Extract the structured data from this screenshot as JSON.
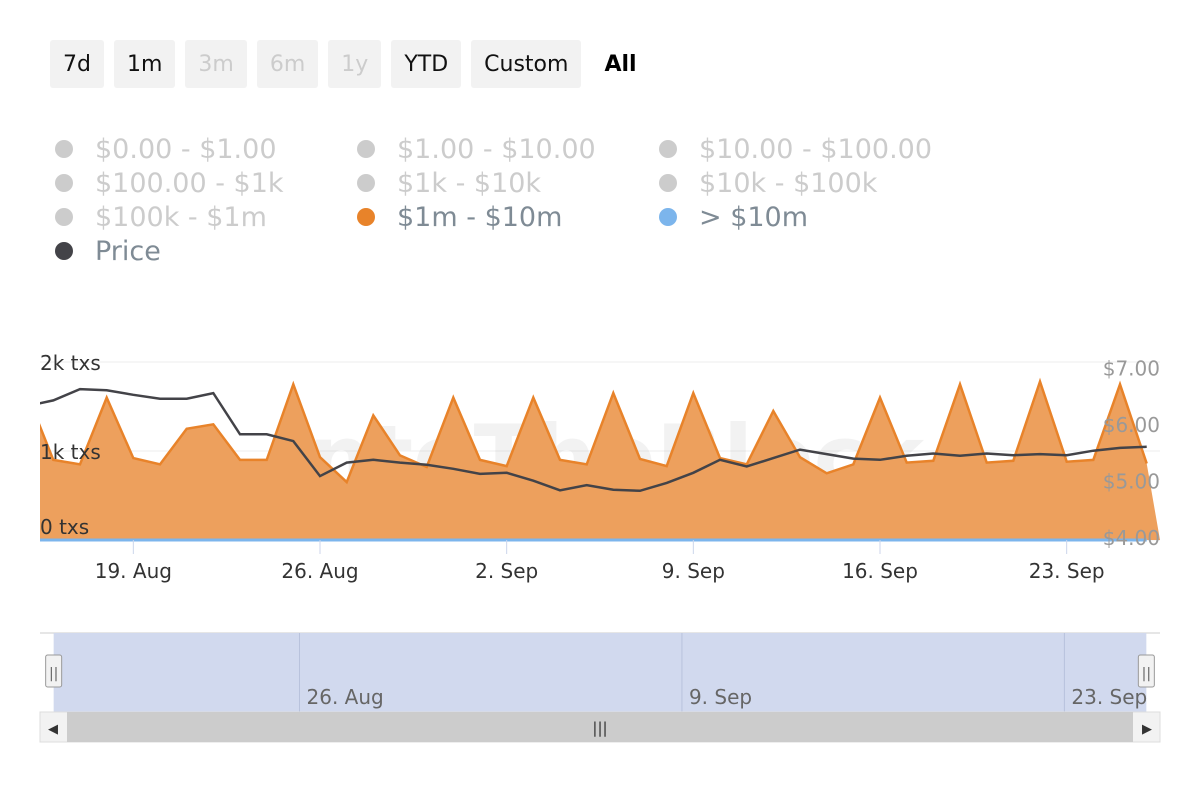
{
  "range_selector": {
    "buttons": [
      {
        "label": "7d",
        "state": "enabled"
      },
      {
        "label": "1m",
        "state": "enabled"
      },
      {
        "label": "3m",
        "state": "disabled"
      },
      {
        "label": "6m",
        "state": "disabled"
      },
      {
        "label": "1y",
        "state": "disabled"
      },
      {
        "label": "YTD",
        "state": "enabled"
      },
      {
        "label": "Custom",
        "state": "enabled"
      },
      {
        "label": "All",
        "state": "selected"
      }
    ]
  },
  "legend": {
    "items": [
      {
        "label": "$0.00 - $1.00",
        "color": "#cccccc",
        "active": false
      },
      {
        "label": "$1.00 - $10.00",
        "color": "#cccccc",
        "active": false
      },
      {
        "label": "$10.00 - $100.00",
        "color": "#cccccc",
        "active": false
      },
      {
        "label": "$100.00 - $1k",
        "color": "#cccccc",
        "active": false
      },
      {
        "label": "$1k - $10k",
        "color": "#cccccc",
        "active": false
      },
      {
        "label": "$10k - $100k",
        "color": "#cccccc",
        "active": false
      },
      {
        "label": "$100k - $1m",
        "color": "#cccccc",
        "active": false
      },
      {
        "label": "$1m - $10m",
        "color": "#e8832a",
        "active": true
      },
      {
        "label": "> $10m",
        "color": "#7cb5ec",
        "active": true
      },
      {
        "label": "Price",
        "color": "#434348",
        "active": true
      }
    ]
  },
  "chart_data": {
    "type": "area",
    "x_dates": [
      "2024-08-15",
      "2024-08-16",
      "2024-08-17",
      "2024-08-18",
      "2024-08-19",
      "2024-08-20",
      "2024-08-21",
      "2024-08-22",
      "2024-08-23",
      "2024-08-24",
      "2024-08-25",
      "2024-08-26",
      "2024-08-27",
      "2024-08-28",
      "2024-08-29",
      "2024-08-30",
      "2024-08-31",
      "2024-09-01",
      "2024-09-02",
      "2024-09-03",
      "2024-09-04",
      "2024-09-05",
      "2024-09-06",
      "2024-09-07",
      "2024-09-08",
      "2024-09-09",
      "2024-09-10",
      "2024-09-11",
      "2024-09-12",
      "2024-09-13",
      "2024-09-14",
      "2024-09-15",
      "2024-09-16",
      "2024-09-17",
      "2024-09-18",
      "2024-09-19",
      "2024-09-20",
      "2024-09-21",
      "2024-09-22",
      "2024-09-23",
      "2024-09-24",
      "2024-09-25",
      "2024-09-26"
    ],
    "x_start": "2024-08-15T12:00",
    "x_end": "2024-09-26T12:00",
    "series": [
      {
        "name": "$1m - $10m",
        "axis": "left",
        "color": "#e8832a",
        "fill": "#eda05d",
        "values": [
          1650,
          900,
          850,
          1600,
          920,
          850,
          1250,
          1300,
          900,
          900,
          1750,
          930,
          650,
          1400,
          950,
          820,
          1600,
          900,
          830,
          1600,
          900,
          850,
          1650,
          910,
          830,
          1650,
          920,
          850,
          1450,
          930,
          750,
          850,
          1600,
          870,
          890,
          1750,
          870,
          890,
          1780,
          880,
          900,
          1750,
          860
        ]
      },
      {
        "name": "> $10m",
        "axis": "left",
        "color": "#7cb5ec",
        "values": [
          0,
          0,
          0,
          0,
          0,
          0,
          0,
          0,
          0,
          0,
          0,
          0,
          0,
          0,
          0,
          0,
          0,
          0,
          0,
          0,
          0,
          0,
          0,
          0,
          0,
          0,
          0,
          0,
          0,
          0,
          0,
          0,
          0,
          0,
          0,
          0,
          0,
          0,
          0,
          0,
          0,
          0,
          0
        ]
      },
      {
        "name": "Price",
        "axis": "right",
        "color": "#434348",
        "values": [
          6.32,
          6.42,
          6.62,
          6.6,
          6.52,
          6.45,
          6.45,
          6.55,
          5.82,
          5.82,
          5.7,
          5.08,
          5.32,
          5.37,
          5.32,
          5.28,
          5.21,
          5.12,
          5.14,
          5.0,
          4.83,
          4.92,
          4.84,
          4.82,
          4.96,
          5.14,
          5.37,
          5.25,
          5.4,
          5.55,
          5.47,
          5.39,
          5.37,
          5.44,
          5.48,
          5.44,
          5.48,
          5.45,
          5.47,
          5.45,
          5.53,
          5.58,
          5.6
        ]
      }
    ],
    "y_left": {
      "ticks": [
        "0 txs",
        "1k txs",
        "2k txs"
      ],
      "ylim": [
        0,
        2000
      ]
    },
    "y_right": {
      "ticks": [
        "$4.00",
        "$5.00",
        "$6.00",
        "$7.00"
      ],
      "ylim": [
        3.95,
        7.1
      ]
    },
    "x_tick_labels": [
      {
        "date": "2024-08-19",
        "label": "19. Aug"
      },
      {
        "date": "2024-08-26",
        "label": "26. Aug"
      },
      {
        "date": "2024-09-02",
        "label": "2. Sep"
      },
      {
        "date": "2024-09-09",
        "label": "9. Sep"
      },
      {
        "date": "2024-09-16",
        "label": "16. Sep"
      },
      {
        "date": "2024-09-23",
        "label": "23. Sep"
      }
    ],
    "watermark": "IntoTheBlock"
  },
  "navigator": {
    "x_start": "2024-08-16T12:00",
    "x_end": "2024-09-26T12:00",
    "selection_start": "2024-08-17T00:00",
    "selection_end": "2024-09-26T00:00",
    "labels": [
      {
        "date": "2024-08-26",
        "label": "26. Aug"
      },
      {
        "date": "2024-09-09",
        "label": "9. Sep"
      },
      {
        "date": "2024-09-23",
        "label": "23. Sep"
      }
    ],
    "handle_glyph": "||",
    "scroll_grip": "|||",
    "scroll_left_glyph": "◀",
    "scroll_right_glyph": "▶"
  }
}
